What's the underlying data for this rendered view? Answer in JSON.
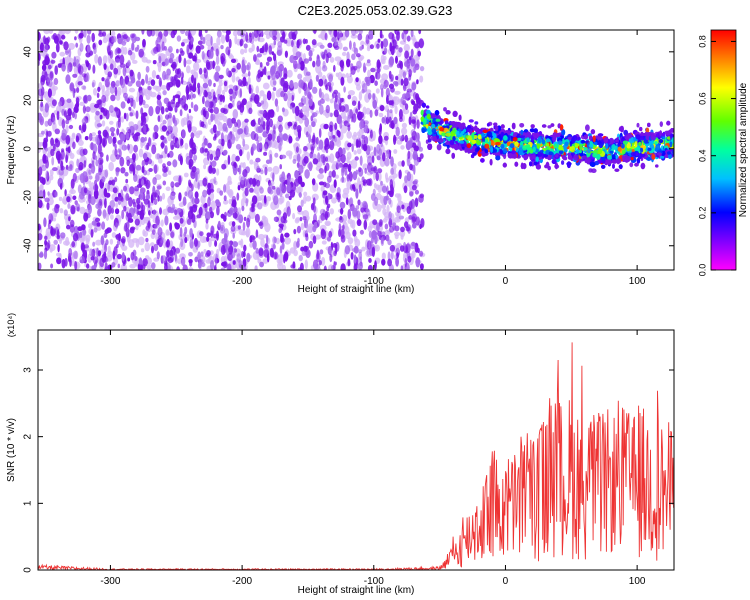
{
  "title": "C2E3.2025.053.02.39.G23",
  "colors": {
    "snr_line": "#ee3333",
    "axis": "#000000",
    "noise_dot": "#7a14e6",
    "noise_light": "#d6b8f6"
  },
  "chart_data": [
    {
      "type": "heatmap",
      "xlabel": "Height of straight line (km)",
      "ylabel": "Frequency (Hz)",
      "xlim": [
        -355,
        128
      ],
      "ylim": [
        -50,
        49
      ],
      "xticks": [
        -300,
        -200,
        -100,
        0,
        100
      ],
      "yticks": [
        -40,
        -20,
        0,
        20,
        40
      ],
      "colorbar": {
        "label": "Normalized spectral amplitude",
        "range": [
          0.0,
          0.84
        ],
        "ticks": [
          0.0,
          0.2,
          0.4,
          0.6,
          0.8
        ],
        "tick_labels": [
          "0.0",
          "0.2",
          "0.4",
          "0.6",
          "0.8"
        ],
        "colormap": "rainbow (magenta-blue-cyan-green-yellow-red)"
      },
      "signal_onset_x": -63,
      "signal_track": {
        "x": [
          -63,
          -40,
          -20,
          0,
          20,
          40,
          60,
          80,
          100,
          128
        ],
        "y": [
          11,
          6,
          3,
          2,
          1,
          1,
          0,
          -1,
          1,
          2
        ],
        "amplitude_range": [
          0.2,
          0.84
        ]
      },
      "noise_amplitude_range": [
        0.0,
        0.12
      ]
    },
    {
      "type": "line",
      "xlabel": "Height of straight line (km)",
      "ylabel": "SNR (10 * v/v)",
      "y_multiplier": "(x10⁴)",
      "xlim": [
        -355,
        128
      ],
      "ylim": [
        0,
        3.6
      ],
      "xticks": [
        -300,
        -200,
        -100,
        0,
        100
      ],
      "yticks": [
        0,
        1,
        2,
        3
      ],
      "series": [
        {
          "x": [
            -355,
            -300,
            -200,
            -100,
            -50,
            -40,
            -30,
            -20,
            -10,
            0,
            10,
            20,
            30,
            40,
            50,
            60,
            70,
            80,
            90,
            100,
            110,
            120,
            128
          ],
          "envelope_max": [
            0.08,
            0.02,
            0.02,
            0.02,
            0.05,
            0.55,
            0.9,
            1.6,
            1.95,
            1.85,
            2.1,
            2.4,
            2.8,
            3.2,
            3.6,
            3.0,
            2.7,
            2.5,
            2.6,
            2.4,
            3.5,
            2.6,
            2.45
          ],
          "envelope_mean": [
            0.03,
            0.01,
            0.01,
            0.01,
            0.02,
            0.2,
            0.45,
            0.7,
            0.9,
            0.9,
            1.0,
            1.1,
            1.2,
            1.35,
            1.4,
            1.3,
            1.25,
            1.3,
            1.4,
            1.3,
            1.3,
            1.2,
            1.15
          ]
        }
      ]
    }
  ]
}
